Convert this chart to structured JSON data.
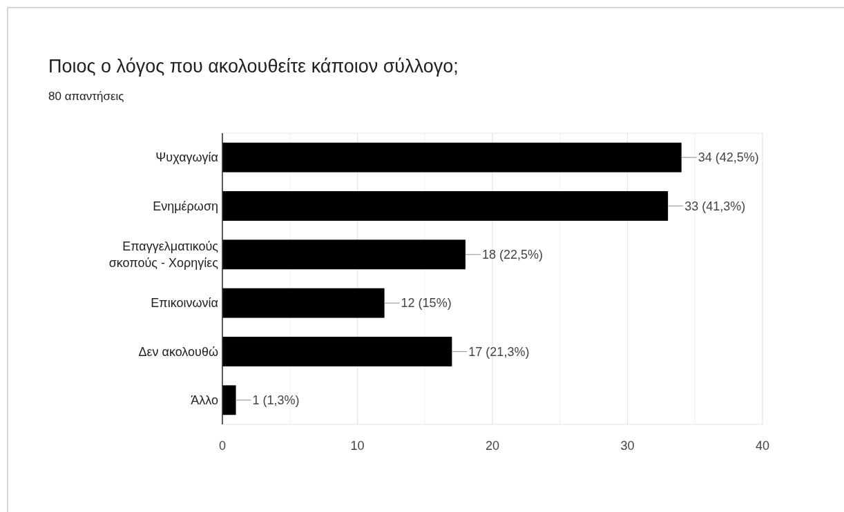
{
  "chart_data": {
    "type": "bar",
    "orientation": "horizontal",
    "title": "Ποιος ο λόγος που ακολουθείτε κάποιον σύλλογο;",
    "subtitle": "80 απαντήσεις",
    "categories": [
      "Ψυχαγωγία",
      "Ενημέρωση",
      "Επαγγελματικούς σκοπούς - Χορηγίες",
      "Επικοινωνία",
      "Δεν ακολουθώ",
      "Άλλο"
    ],
    "values": [
      34,
      33,
      18,
      12,
      17,
      1
    ],
    "color": "#000000",
    "value_labels": [
      "34 (42,5%)",
      "33 (41,3%)",
      "18 (22,5%)",
      "12 (15%)",
      "17 (21,3%)",
      "1 (1,3%)"
    ],
    "xlim": [
      0,
      40
    ],
    "xticks": [
      0,
      {
        "value": 5,
        "label": null
      },
      10,
      {
        "value": 15,
        "label": null
      },
      20,
      {
        "value": 25,
        "label": null
      },
      30,
      {
        "value": 35,
        "label": null
      },
      40
    ],
    "grid": "x"
  }
}
